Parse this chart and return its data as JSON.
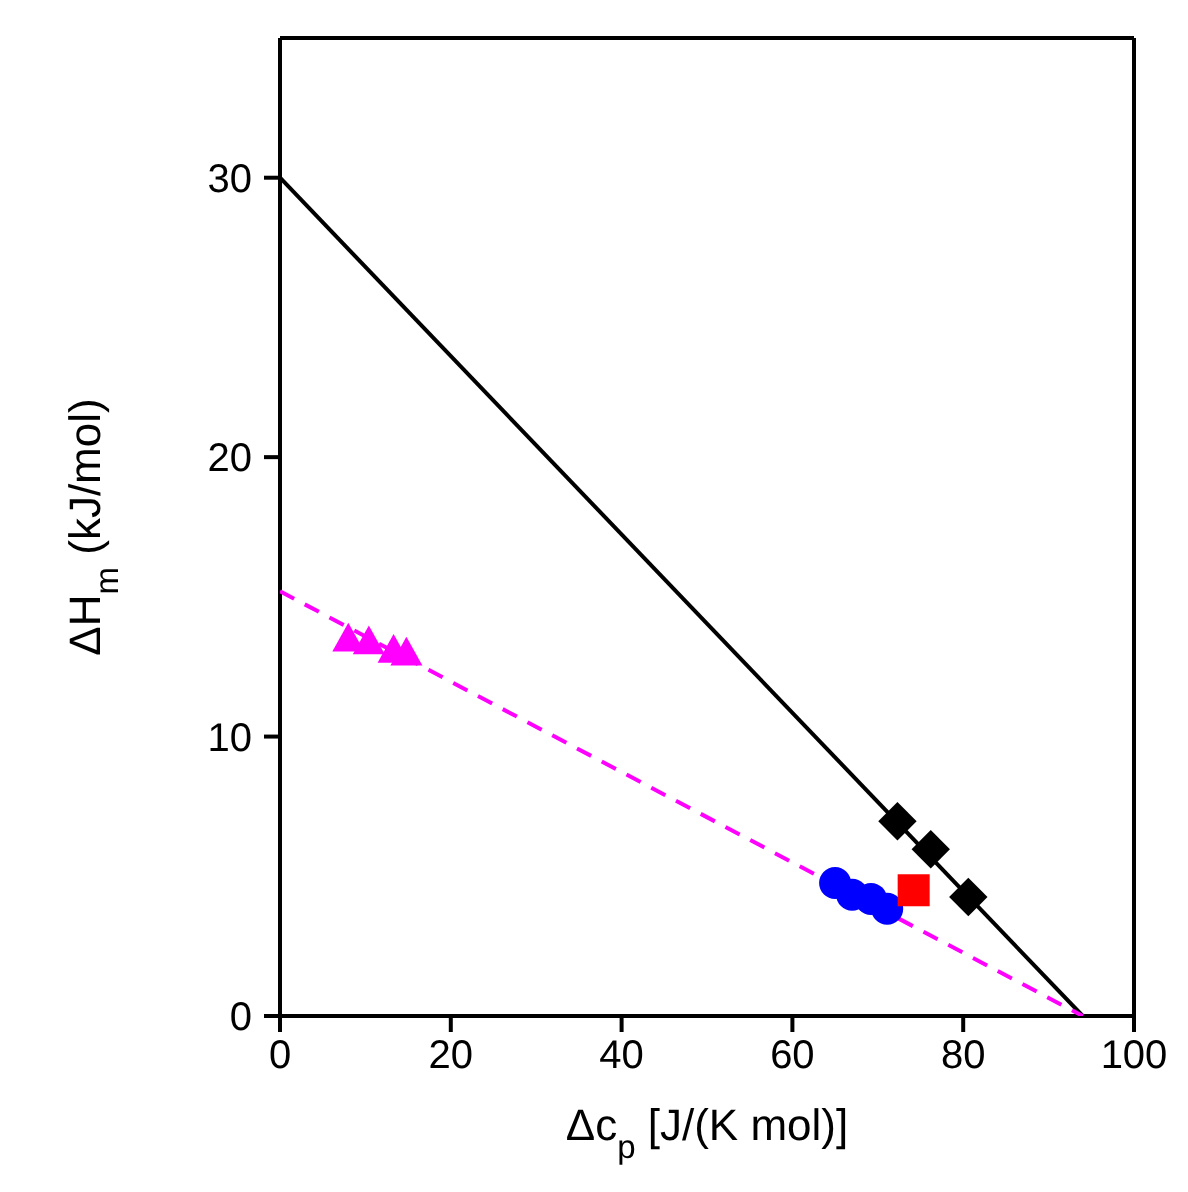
{
  "chart_data": {
    "type": "scatter",
    "xlabel": "Δc$_{p}$ [J/(K mol)]",
    "ylabel": "ΔH$_{m}$ (kJ/mol)",
    "xlim": [
      0,
      100
    ],
    "xticks": [
      0,
      20,
      40,
      60,
      80,
      100
    ],
    "ylim": [
      0,
      35
    ],
    "yticks": [
      0,
      10,
      20,
      30
    ],
    "series": [
      {
        "type": "line",
        "color": "#000000",
        "marker": "none",
        "line_style": "solid",
        "x": [
          0,
          94
        ],
        "values": [
          30,
          0
        ]
      },
      {
        "type": "line",
        "color": "#ff00ff",
        "marker": "none",
        "line_style": "dashed",
        "x": [
          0,
          94
        ],
        "values": [
          15.2,
          0
        ]
      },
      {
        "color": "#ff00ff",
        "marker": "triangle",
        "x": [
          8.0,
          10.4,
          13.3,
          14.8
        ],
        "values": [
          13.5,
          13.4,
          13.1,
          13.0
        ]
      },
      {
        "color": "#0000ff",
        "marker": "circle",
        "x": [
          65.0,
          67.0,
          69.2,
          71.1
        ],
        "values": [
          4.76,
          4.34,
          4.19,
          3.84
        ]
      },
      {
        "color": "#ff0000",
        "marker": "square",
        "x": [
          74.2
        ],
        "values": [
          4.5
        ]
      },
      {
        "color": "#000000",
        "marker": "diamond",
        "x": [
          72.3,
          76.2,
          80.6
        ],
        "values": [
          6.97,
          5.97,
          4.26
        ]
      }
    ]
  }
}
